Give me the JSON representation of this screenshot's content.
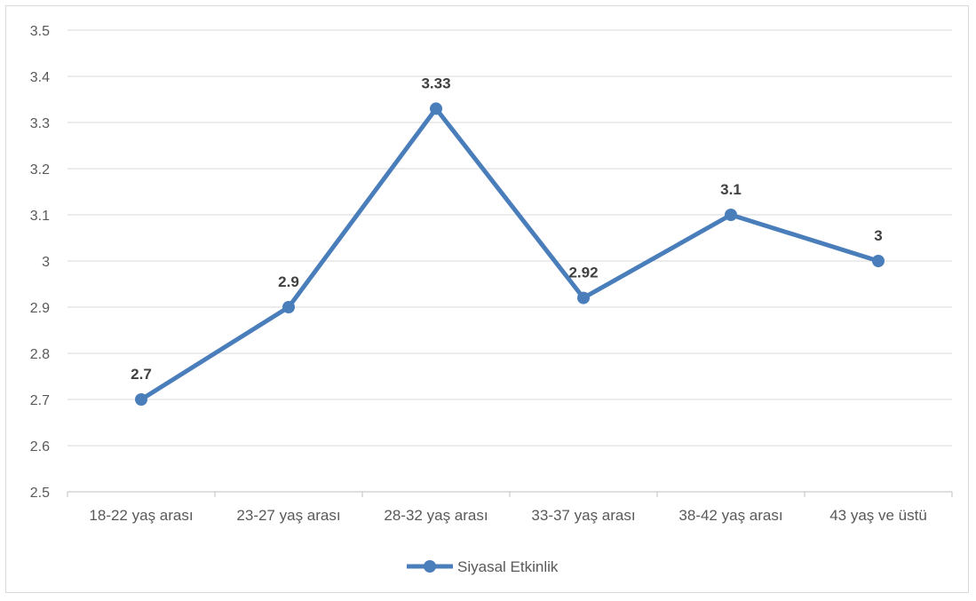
{
  "chart_data": {
    "type": "line",
    "title": "",
    "xlabel": "",
    "ylabel": "",
    "categories": [
      "18-22 yaş arası",
      "23-27 yaş arası",
      "28-32 yaş arası",
      "33-37 yaş arası",
      "38-42 yaş arası",
      "43 yaş ve üstü"
    ],
    "series": [
      {
        "name": "Siyasal Etkinlik",
        "values": [
          2.7,
          2.9,
          3.33,
          2.92,
          3.1,
          3
        ],
        "labels": [
          "2.7",
          "2.9",
          "3.33",
          "2.92",
          "3.1",
          "3"
        ],
        "color": "#4a7ebb"
      }
    ],
    "ylim": [
      2.5,
      3.5
    ],
    "yticks": [
      "2.5",
      "2.6",
      "2.7",
      "2.8",
      "2.9",
      "3",
      "3.1",
      "3.2",
      "3.3",
      "3.4",
      "3.5"
    ],
    "grid": true,
    "legend_position": "bottom",
    "colors": {
      "gridline": "#d9d9d9",
      "axis": "#bfbfbf",
      "text": "#595959",
      "label": "#404040"
    }
  }
}
